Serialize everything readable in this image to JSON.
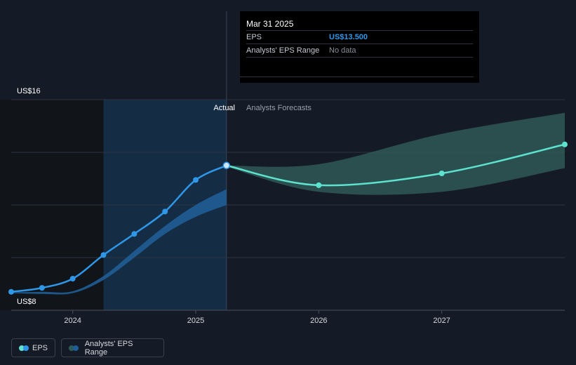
{
  "tooltip": {
    "date": "Mar 31 2025",
    "rows": [
      {
        "label": "EPS",
        "value": "US$13.500"
      },
      {
        "label": "Analysts' EPS Range",
        "value": "No data"
      }
    ]
  },
  "labels": {
    "actual": "Actual",
    "forecast": "Analysts Forecasts"
  },
  "legend": [
    {
      "label": "EPS"
    },
    {
      "label": "Analysts' EPS Range"
    }
  ],
  "colors": {
    "background": "#151b26",
    "eps_actual": "#2f97e8",
    "eps_forecast": "#5ee2d0",
    "range_forecast": "#2f5c59",
    "range_actual": "#1f5d96"
  },
  "chart_data": {
    "type": "line",
    "y_ticks": [
      {
        "value": 8,
        "label": "US$8"
      },
      {
        "value": 16,
        "label": "US$16"
      }
    ],
    "ylim": [
      8,
      16
    ],
    "xlim": [
      2023.5,
      2028.0
    ],
    "x_ticks": [
      {
        "value": 2024,
        "label": "2024"
      },
      {
        "value": 2025,
        "label": "2025"
      },
      {
        "value": 2026,
        "label": "2026"
      },
      {
        "value": 2027,
        "label": "2027"
      }
    ],
    "actual_start": 2024.25,
    "divider_x": 2025.25,
    "series": [
      {
        "name": "EPS",
        "points": [
          [
            2023.5,
            8.7
          ],
          [
            2023.75,
            8.85
          ],
          [
            2024.0,
            9.2
          ],
          [
            2024.25,
            10.1
          ],
          [
            2024.5,
            10.9
          ],
          [
            2024.75,
            11.75
          ],
          [
            2025.0,
            12.95
          ],
          [
            2025.25,
            13.5
          ]
        ]
      },
      {
        "name": "EPS",
        "points": [
          [
            2025.25,
            13.5
          ],
          [
            2026.0,
            12.75
          ],
          [
            2027.0,
            13.2
          ],
          [
            2028.0,
            14.3
          ]
        ]
      }
    ],
    "range_actual": {
      "upper": [
        [
          2023.5,
          8.68
        ],
        [
          2023.75,
          8.7
        ],
        [
          2024.0,
          8.72
        ],
        [
          2024.25,
          9.3
        ],
        [
          2024.5,
          10.25
        ],
        [
          2024.75,
          11.2
        ],
        [
          2025.0,
          12.0
        ],
        [
          2025.25,
          12.6
        ]
      ],
      "lower": [
        [
          2023.5,
          8.65
        ],
        [
          2023.75,
          8.62
        ],
        [
          2024.0,
          8.65
        ],
        [
          2024.25,
          9.15
        ],
        [
          2024.5,
          10.0
        ],
        [
          2024.75,
          10.9
        ],
        [
          2025.0,
          11.55
        ],
        [
          2025.25,
          12.0
        ]
      ]
    },
    "range_forecast": {
      "upper": [
        [
          2025.25,
          13.5
        ],
        [
          2026.0,
          13.55
        ],
        [
          2027.0,
          14.7
        ],
        [
          2028.0,
          15.5
        ]
      ],
      "lower": [
        [
          2025.25,
          13.45
        ],
        [
          2026.0,
          12.5
        ],
        [
          2027.0,
          12.5
        ],
        [
          2028.0,
          13.4
        ]
      ]
    }
  }
}
